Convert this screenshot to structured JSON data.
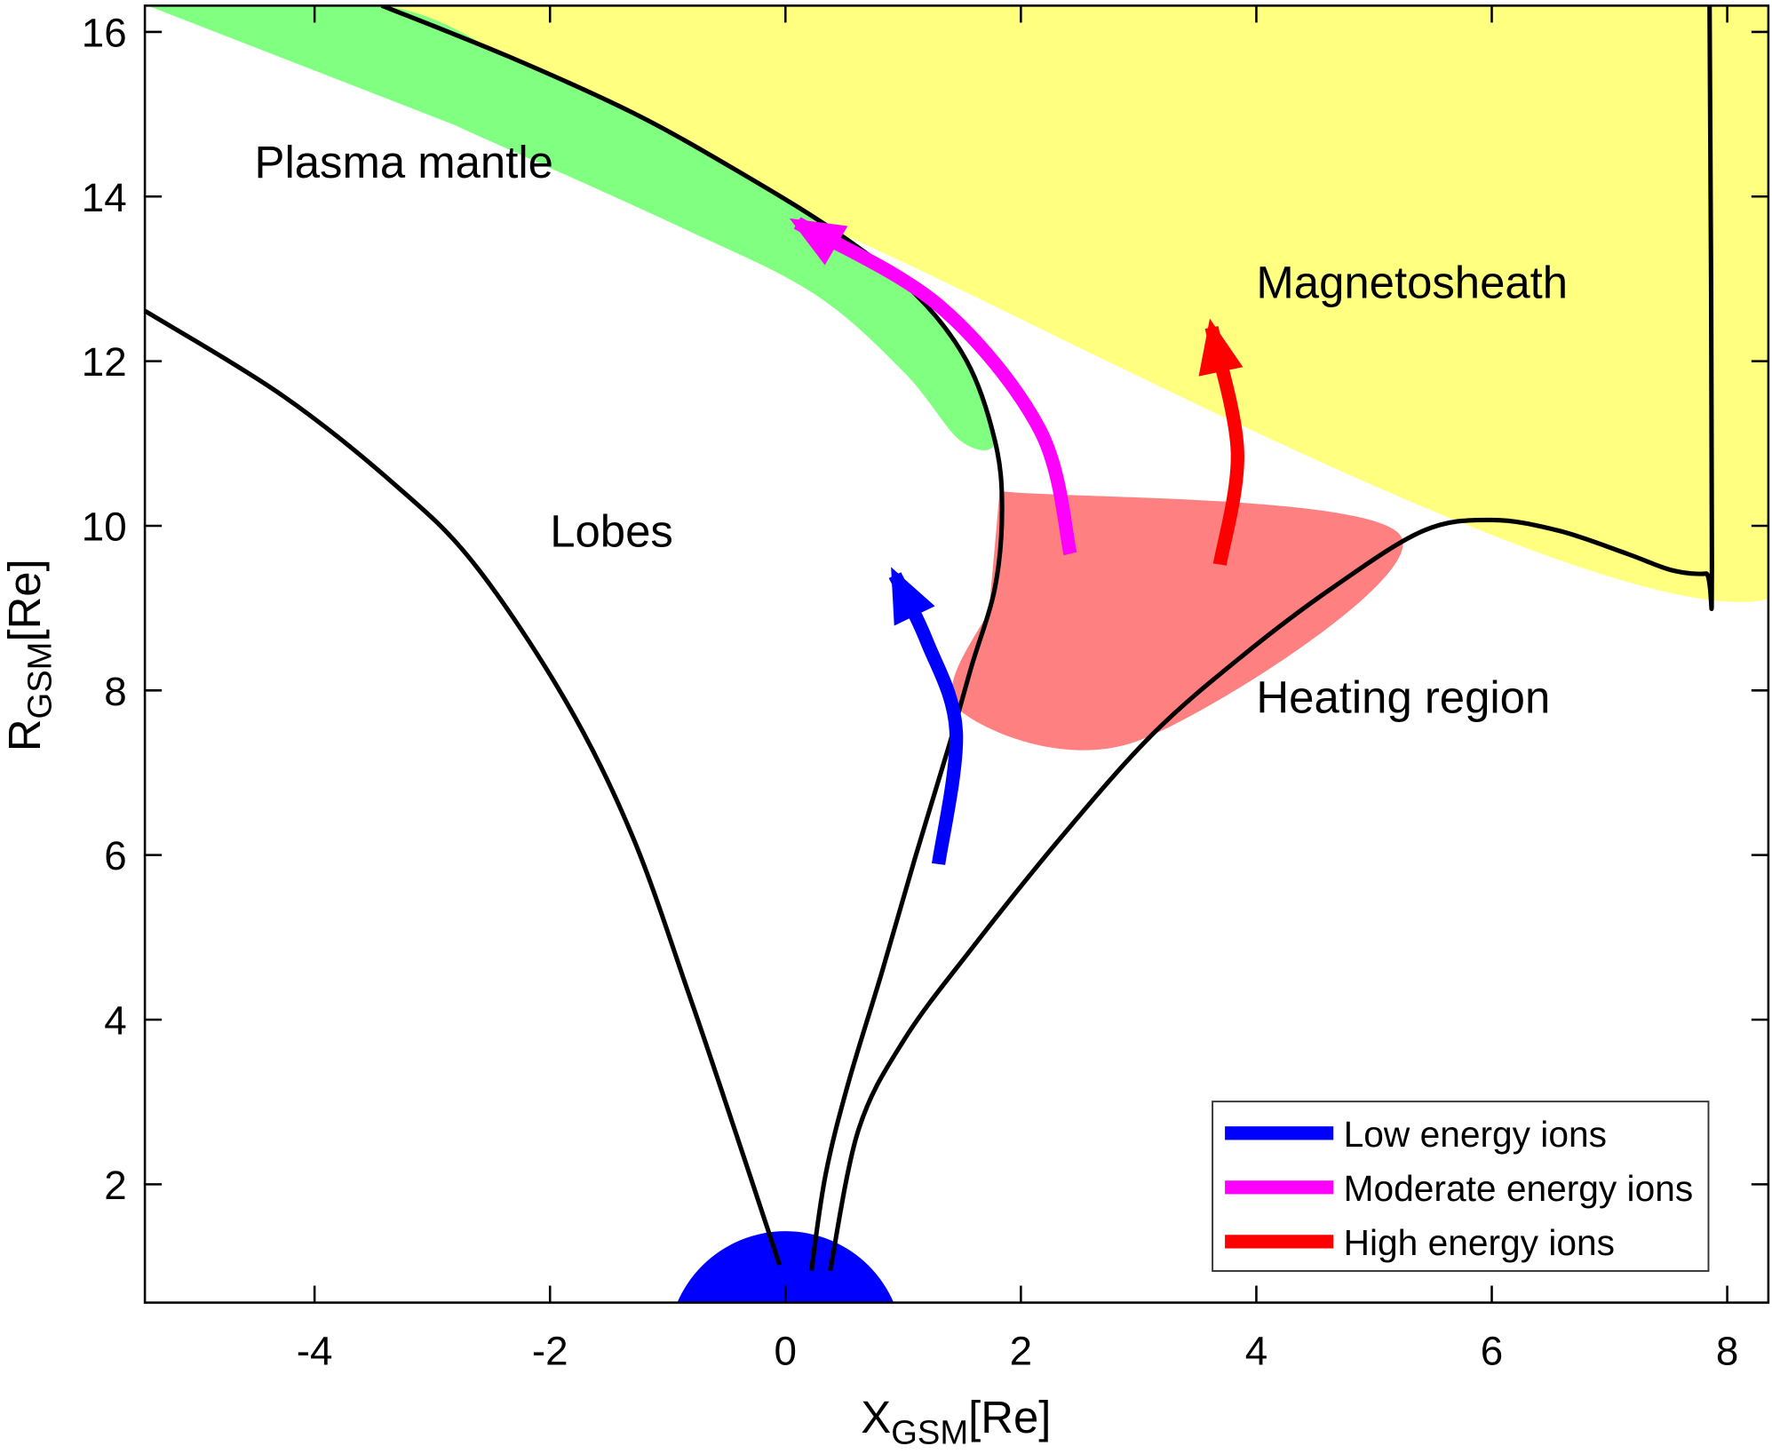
{
  "chart_data": {
    "type": "diagram",
    "xlabel": "X",
    "xlabel_sub": "GSM",
    "xlabel_unit": "[Re]",
    "ylabel": "R",
    "ylabel_sub": "GSM",
    "ylabel_unit": "[Re]",
    "xlim": [
      -5.44,
      8.35
    ],
    "ylim": [
      0.56,
      16.32
    ],
    "xticks": [
      -4,
      -2,
      0,
      2,
      4,
      6,
      8
    ],
    "yticks": [
      2,
      4,
      6,
      8,
      10,
      12,
      14,
      16
    ],
    "regions": [
      {
        "name": "magnetosheath",
        "color": "#ffff80",
        "points": [
          [
            -3.43,
            16.32
          ],
          [
            8.35,
            16.32
          ],
          [
            8.35,
            9.11
          ],
          [
            0.43,
            13.57
          ],
          [
            -0.43,
            14.33
          ],
          [
            -1.3,
            15.02
          ],
          [
            -2.35,
            15.7
          ]
        ]
      },
      {
        "name": "plasma-mantle",
        "color": "#80ff80",
        "points": [
          [
            -5.42,
            16.32
          ],
          [
            -3.43,
            16.32
          ],
          [
            -2.35,
            15.7
          ],
          [
            -1.3,
            15.02
          ],
          [
            -0.43,
            14.33
          ],
          [
            0.43,
            13.57
          ],
          [
            1.1,
            12.82
          ],
          [
            1.54,
            12.0
          ],
          [
            1.78,
            11.03
          ],
          [
            1.49,
            11.03
          ],
          [
            1.01,
            11.86
          ],
          [
            0.24,
            12.82
          ],
          [
            -0.91,
            13.64
          ],
          [
            -2.83,
            14.88
          ]
        ]
      },
      {
        "name": "heating-region",
        "color": "#ff8080",
        "points": [
          [
            1.82,
            10.42
          ],
          [
            5.23,
            9.87
          ],
          [
            3.02,
            7.4
          ],
          [
            1.47,
            7.77
          ],
          [
            1.73,
            8.98
          ]
        ]
      }
    ],
    "boundaries": [
      {
        "name": "lobe-boundary-left",
        "points": [
          [
            -5.44,
            12.61
          ],
          [
            -4.27,
            11.58
          ],
          [
            -3.31,
            10.49
          ],
          [
            -2.64,
            9.53
          ],
          [
            -1.87,
            7.88
          ],
          [
            -1.3,
            6.23
          ],
          [
            -0.82,
            4.31
          ],
          [
            -0.43,
            2.66
          ],
          [
            -0.05,
            1.02
          ]
        ]
      },
      {
        "name": "magnetopause",
        "points": [
          [
            -3.43,
            16.32
          ],
          [
            -2.35,
            15.7
          ],
          [
            -1.3,
            15.02
          ],
          [
            -0.43,
            14.33
          ],
          [
            0.43,
            13.57
          ],
          [
            1.1,
            12.82
          ],
          [
            1.54,
            12.0
          ],
          [
            1.78,
            11.03
          ],
          [
            1.84,
            10.21
          ],
          [
            1.78,
            9.25
          ],
          [
            1.58,
            8.29
          ],
          [
            1.39,
            7.33
          ],
          [
            1.1,
            5.96
          ],
          [
            0.82,
            4.58
          ],
          [
            0.53,
            3.21
          ],
          [
            0.34,
            2.11
          ],
          [
            0.22,
            0.95
          ]
        ]
      },
      {
        "name": "plasma-sheet-boundary",
        "points": [
          [
            0.38,
            0.95
          ],
          [
            0.62,
            2.66
          ],
          [
            1.01,
            3.76
          ],
          [
            1.58,
            4.86
          ],
          [
            2.35,
            6.23
          ],
          [
            3.12,
            7.47
          ],
          [
            3.89,
            8.43
          ],
          [
            4.65,
            9.25
          ],
          [
            5.42,
            9.94
          ],
          [
            6.0,
            10.07
          ],
          [
            6.57,
            9.94
          ],
          [
            7.15,
            9.66
          ],
          [
            7.53,
            9.46
          ],
          [
            7.82,
            9.42
          ],
          [
            7.87,
            9.53
          ],
          [
            7.85,
            16.32
          ]
        ]
      }
    ],
    "earth": {
      "center": [
        0,
        0
      ],
      "radius": 1,
      "color": "#0000ff"
    },
    "arrows": [
      {
        "name": "low-energy-arrow",
        "color": "#0000ff",
        "points": [
          [
            1.3,
            5.89
          ],
          [
            1.45,
            7.5
          ],
          [
            1.2,
            8.6
          ],
          [
            0.93,
            9.4
          ]
        ]
      },
      {
        "name": "moderate-energy-arrow",
        "color": "#ff00ff",
        "points": [
          [
            2.42,
            9.66
          ],
          [
            2.16,
            11.17
          ],
          [
            1.3,
            12.68
          ],
          [
            0.1,
            13.68
          ]
        ]
      },
      {
        "name": "high-energy-arrow",
        "color": "#ff0000",
        "points": [
          [
            3.69,
            9.53
          ],
          [
            3.84,
            10.9
          ],
          [
            3.62,
            12.41
          ]
        ]
      }
    ],
    "annotations": [
      {
        "text": "Plasma mantle",
        "x": -4.51,
        "y": 14.42
      },
      {
        "text": "Lobes",
        "x": -2.0,
        "y": 9.94
      },
      {
        "text": "Magnetosheath",
        "x": 4.0,
        "y": 12.96
      },
      {
        "text": "Heating region",
        "x": 4.0,
        "y": 7.92
      }
    ],
    "legend": {
      "placement": "bottom-right",
      "entries": [
        {
          "label": "Low energy ions",
          "color": "#0000ff"
        },
        {
          "label": "Moderate energy ions",
          "color": "#ff00ff"
        },
        {
          "label": "High energy ions",
          "color": "#ff0000"
        }
      ]
    }
  }
}
